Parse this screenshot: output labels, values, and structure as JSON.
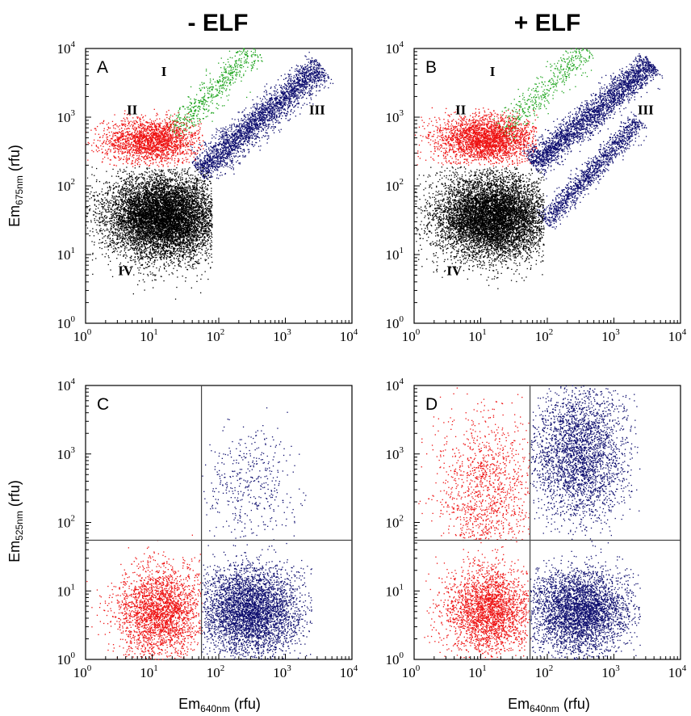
{
  "chart_data": [
    {
      "panel": "A",
      "type": "scatter",
      "column_title": "- ELF",
      "xlabel": {
        "main": "Em",
        "sub": "640nm",
        "unit": " (rfu)"
      },
      "ylabel": {
        "main": "Em",
        "sub": "675nm",
        "unit": " (rfu)"
      },
      "xscale": "log",
      "yscale": "log",
      "xlim": [
        1,
        10000
      ],
      "ylim": [
        1,
        10000
      ],
      "xticks": [
        1,
        10,
        100,
        1000,
        10000
      ],
      "yticks": [
        1,
        10,
        100,
        1000,
        10000
      ],
      "populations": [
        {
          "label": "I",
          "color": "#1aa31a",
          "count": 600,
          "shape": "band",
          "x_start": 20,
          "x_end": 350,
          "y_start": 600,
          "y_end": 10000,
          "log_width": 0.2
        },
        {
          "label": "II",
          "color": "#ee1111",
          "count": 2200,
          "shape": "blob",
          "x_center": 10,
          "y_center": 450,
          "log_sx": 0.36,
          "log_sy": 0.16,
          "x_min": 1,
          "x_max": 60,
          "y_min": 190,
          "y_max": 1300
        },
        {
          "label": "III",
          "color": "#0d0d6e",
          "count": 2800,
          "shape": "band",
          "x_start": 50,
          "x_end": 3500,
          "y_start": 160,
          "y_end": 5500,
          "log_width": 0.22
        },
        {
          "label": "IV",
          "color": "#000000",
          "count": 9000,
          "shape": "blob",
          "x_center": 15,
          "y_center": 35,
          "log_sx": 0.42,
          "log_sy": 0.3,
          "x_min": 1,
          "x_max": 80,
          "y_min": 1,
          "y_max": 190
        }
      ],
      "annotations": [
        {
          "text": "I",
          "x": 15,
          "y": 4000
        },
        {
          "text": "II",
          "x": 5,
          "y": 1100
        },
        {
          "text": "III",
          "x": 3000,
          "y": 1100
        },
        {
          "text": "IV",
          "x": 4,
          "y": 5
        }
      ]
    },
    {
      "panel": "B",
      "type": "scatter",
      "column_title": "+ ELF",
      "xlabel": {
        "main": "",
        "sub": "",
        "unit": ""
      },
      "ylabel": {
        "main": "",
        "sub": "",
        "unit": ""
      },
      "xscale": "log",
      "yscale": "log",
      "xlim": [
        1,
        10000
      ],
      "ylim": [
        1,
        10000
      ],
      "xticks": [
        1,
        10,
        100,
        1000,
        10000
      ],
      "yticks": [
        1,
        10,
        100,
        1000,
        10000
      ],
      "populations": [
        {
          "label": "I",
          "color": "#1aa31a",
          "count": 500,
          "shape": "band",
          "x_start": 20,
          "x_end": 400,
          "y_start": 600,
          "y_end": 10000,
          "log_width": 0.2
        },
        {
          "label": "II",
          "color": "#ee1111",
          "count": 2800,
          "shape": "blob",
          "x_center": 12,
          "y_center": 480,
          "log_sx": 0.38,
          "log_sy": 0.17,
          "x_min": 1,
          "x_max": 70,
          "y_min": 190,
          "y_max": 1400
        },
        {
          "label": "III",
          "color": "#0d0d6e",
          "count": 2800,
          "shape": "band",
          "x_start": 60,
          "x_end": 3800,
          "y_start": 200,
          "y_end": 6000,
          "log_width": 0.2
        },
        {
          "label": "III",
          "color": "#0d0d6e",
          "count": 1400,
          "shape": "band",
          "x_start": 90,
          "x_end": 2500,
          "y_start": 30,
          "y_end": 900,
          "log_width": 0.16
        },
        {
          "label": "IV",
          "color": "#000000",
          "count": 8000,
          "shape": "blob",
          "x_center": 15,
          "y_center": 35,
          "log_sx": 0.42,
          "log_sy": 0.3,
          "x_min": 1,
          "x_max": 90,
          "y_min": 1,
          "y_max": 190
        }
      ],
      "annotations": [
        {
          "text": "I",
          "x": 15,
          "y": 4000
        },
        {
          "text": "II",
          "x": 5,
          "y": 1100
        },
        {
          "text": "III",
          "x": 3000,
          "y": 1100
        },
        {
          "text": "IV",
          "x": 4,
          "y": 5
        }
      ]
    },
    {
      "panel": "C",
      "type": "scatter",
      "column_title": "",
      "xlabel": {
        "main": "Em",
        "sub": "640nm",
        "unit": " (rfu)"
      },
      "ylabel": {
        "main": "Em",
        "sub": "525nm",
        "unit": " (rfu)"
      },
      "xscale": "log",
      "yscale": "log",
      "xlim": [
        1,
        10000
      ],
      "ylim": [
        1,
        10000
      ],
      "xticks": [
        1,
        10,
        100,
        1000,
        10000
      ],
      "yticks": [
        1,
        10,
        100,
        1000,
        10000
      ],
      "quadrant_lines": {
        "x": 55,
        "y": 55
      },
      "populations": [
        {
          "label": "",
          "color": "#ee1111",
          "count": 2600,
          "shape": "blob",
          "x_center": 13,
          "y_center": 5,
          "log_sx": 0.32,
          "log_sy": 0.32,
          "x_min": 1,
          "x_max": 56,
          "y_min": 1,
          "y_max": 120
        },
        {
          "label": "",
          "color": "#0d0d6e",
          "count": 4200,
          "shape": "blob",
          "x_center": 300,
          "y_center": 5,
          "log_sx": 0.38,
          "log_sy": 0.32,
          "x_min": 56,
          "x_max": 2500,
          "y_min": 1,
          "y_max": 55
        },
        {
          "label": "",
          "color": "#0d0d6e",
          "count": 420,
          "shape": "blob",
          "x_center": 300,
          "y_center": 350,
          "log_sx": 0.35,
          "log_sy": 0.45,
          "x_min": 56,
          "x_max": 2500,
          "y_min": 55,
          "y_max": 9000
        }
      ],
      "annotations": []
    },
    {
      "panel": "D",
      "type": "scatter",
      "column_title": "",
      "xlabel": {
        "main": "Em",
        "sub": "640nm",
        "unit": " (rfu)"
      },
      "ylabel": {
        "main": "",
        "sub": "",
        "unit": ""
      },
      "xscale": "log",
      "yscale": "log",
      "xlim": [
        1,
        10000
      ],
      "ylim": [
        1,
        10000
      ],
      "xticks": [
        1,
        10,
        100,
        1000,
        10000
      ],
      "yticks": [
        1,
        10,
        100,
        1000,
        10000
      ],
      "quadrant_lines": {
        "x": 55,
        "y": 55
      },
      "populations": [
        {
          "label": "",
          "color": "#ee1111",
          "count": 2600,
          "shape": "blob",
          "x_center": 13,
          "y_center": 5,
          "log_sx": 0.32,
          "log_sy": 0.32,
          "x_min": 1,
          "x_max": 56,
          "y_min": 1,
          "y_max": 55
        },
        {
          "label": "",
          "color": "#ee1111",
          "count": 1300,
          "shape": "blob",
          "x_center": 12,
          "y_center": 250,
          "log_sx": 0.35,
          "log_sy": 0.6,
          "x_min": 1,
          "x_max": 56,
          "y_min": 55,
          "y_max": 10000
        },
        {
          "label": "",
          "color": "#0d0d6e",
          "count": 3800,
          "shape": "blob",
          "x_center": 300,
          "y_center": 5,
          "log_sx": 0.38,
          "log_sy": 0.3,
          "x_min": 56,
          "x_max": 2500,
          "y_min": 1,
          "y_max": 55
        },
        {
          "label": "",
          "color": "#0d0d6e",
          "count": 3000,
          "shape": "blob",
          "x_center": 300,
          "y_center": 1000,
          "log_sx": 0.35,
          "log_sy": 0.5,
          "x_min": 56,
          "x_max": 2500,
          "y_min": 55,
          "y_max": 10000
        }
      ],
      "annotations": []
    }
  ]
}
